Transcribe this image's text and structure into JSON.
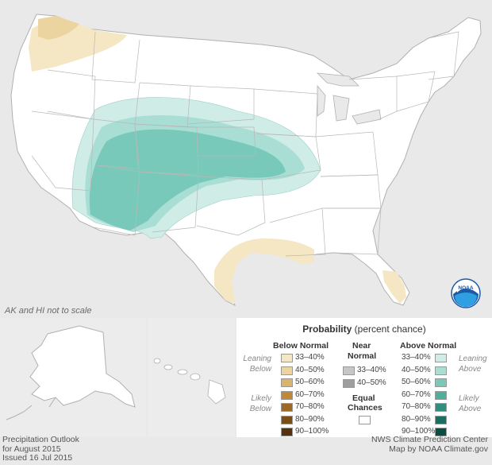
{
  "map": {
    "scale_note": "AK and HI not to scale"
  },
  "legend": {
    "title_bold": "Probability",
    "title_rest": " (percent chance)",
    "below_normal": {
      "header": "Below Normal",
      "ranges": [
        "33–40%",
        "40–50%",
        "50–60%",
        "60–70%",
        "70–80%",
        "80–90%",
        "90–100%"
      ],
      "colors": [
        "#f5e7c4",
        "#ecd4a0",
        "#d9b46a",
        "#c08a35",
        "#9c6a22",
        "#7a4f16",
        "#56340b"
      ]
    },
    "near_normal": {
      "header_line1": "Near",
      "header_line2": "Normal",
      "ranges": [
        "33–40%",
        "40–50%"
      ],
      "colors": [
        "#c6c6c6",
        "#9e9e9e"
      ]
    },
    "above_normal": {
      "header": "Above Normal",
      "ranges": [
        "33–40%",
        "40–50%",
        "50–60%",
        "60–70%",
        "70–80%",
        "80–90%",
        "90–100%"
      ],
      "colors": [
        "#cfece7",
        "#a9ded4",
        "#79c9ba",
        "#4fae9c",
        "#2f8f7e",
        "#1a6f60",
        "#0b4f43"
      ]
    },
    "equal_chances": {
      "line1": "Equal",
      "line2": "Chances",
      "color": "#ffffff"
    },
    "side_labels": {
      "leaning_below_1": "Leaning",
      "leaning_below_2": "Below",
      "likely_below_1": "Likely",
      "likely_below_2": "Below",
      "leaning_above_1": "Leaning",
      "leaning_above_2": "Above",
      "likely_above_1": "Likely",
      "likely_above_2": "Above"
    }
  },
  "footer": {
    "left": [
      "Precipitation Outlook",
      "for August 2015",
      "Issued 16 Jul 2015"
    ],
    "right": [
      "NWS Climate Prediction Center",
      "Map by NOAA Climate.gov"
    ]
  },
  "logo": {
    "text": "NOAA",
    "colors": {
      "blue": "#1c5aa8",
      "light": "#2e9fe0"
    }
  }
}
